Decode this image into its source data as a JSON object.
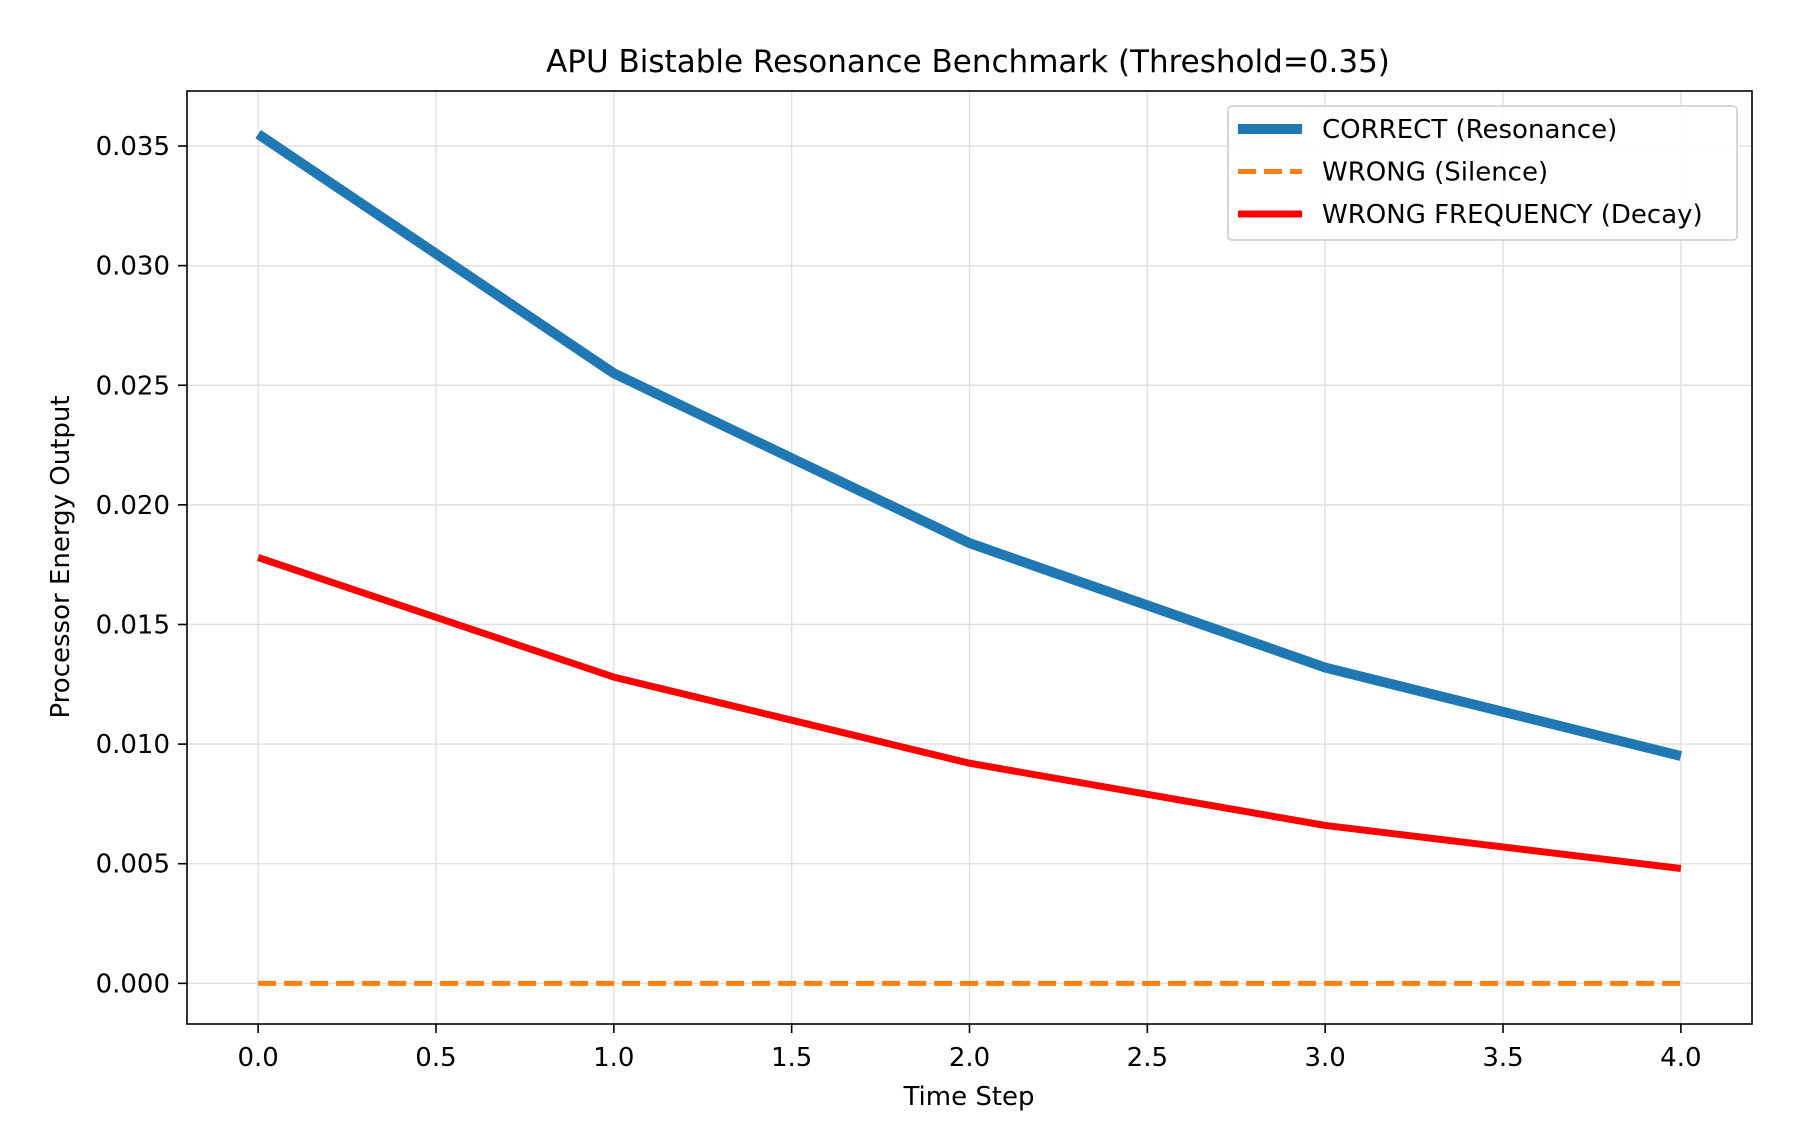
{
  "chart_data": {
    "type": "line",
    "title": "APU Bistable Resonance Benchmark (Threshold=0.35)",
    "xlabel": "Time Step",
    "ylabel": "Processor Energy Output",
    "xlim": [
      -0.2,
      4.2
    ],
    "ylim": [
      -0.0017,
      0.0373
    ],
    "xticks": [
      0.0,
      0.5,
      1.0,
      1.5,
      2.0,
      2.5,
      3.0,
      3.5,
      4.0
    ],
    "xtick_labels": [
      "0.0",
      "0.5",
      "1.0",
      "1.5",
      "2.0",
      "2.5",
      "3.0",
      "3.5",
      "4.0"
    ],
    "yticks": [
      0.0,
      0.005,
      0.01,
      0.015,
      0.02,
      0.025,
      0.03,
      0.035
    ],
    "ytick_labels": [
      "0.000",
      "0.005",
      "0.010",
      "0.015",
      "0.020",
      "0.025",
      "0.030",
      "0.035"
    ],
    "grid": true,
    "legend_position": "top-right",
    "x": [
      0,
      1,
      2,
      3,
      4
    ],
    "series": [
      {
        "name": "CORRECT (Resonance)",
        "values": [
          0.0355,
          0.0255,
          0.0184,
          0.0132,
          0.0095
        ],
        "color": "#1f77b4",
        "style": "solid",
        "weight": "heavy"
      },
      {
        "name": "WRONG (Silence)",
        "values": [
          0.0,
          0.0,
          0.0,
          0.0,
          0.0
        ],
        "color": "#ff7f0e",
        "style": "dashed",
        "weight": "normal"
      },
      {
        "name": "WRONG FREQUENCY (Decay)",
        "values": [
          0.0178,
          0.0128,
          0.0092,
          0.0066,
          0.0048
        ],
        "color": "#ff0000",
        "style": "solid",
        "weight": "medium"
      }
    ]
  }
}
